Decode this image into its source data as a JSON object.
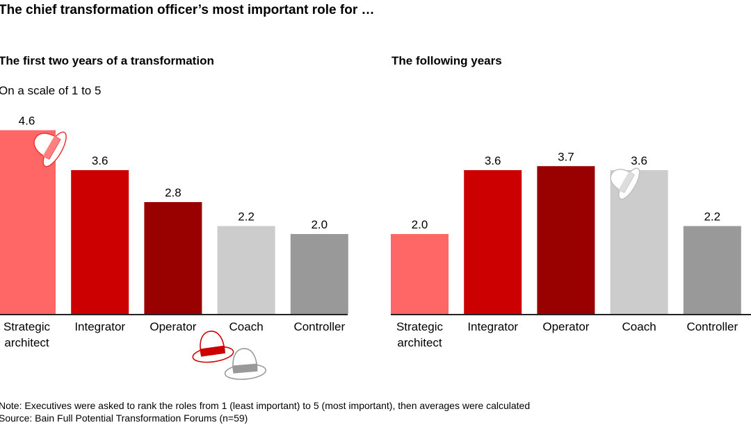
{
  "title": "The chief transformation officer’s most important role for …",
  "scale_note": "On a scale of 1 to 5",
  "footnote": "Note: Executives were asked to rank the roles from 1 (least important) to 5 (most important), then averages were calculated",
  "source": "Source: Bain Full Potential Transformation Forums (n=59)",
  "colors": {
    "Strategic architect": "#ff6666",
    "Integrator": "#cc0000",
    "Operator": "#990000",
    "Coach": "#cccccc",
    "Controller": "#999999"
  },
  "chart_data": [
    {
      "type": "bar",
      "title": "The first two years of a transformation",
      "categories": [
        "Strategic architect",
        "Integrator",
        "Operator",
        "Coach",
        "Controller"
      ],
      "values": [
        4.6,
        3.6,
        2.8,
        2.2,
        2.0
      ],
      "data_labels": [
        "4.6",
        "3.6",
        "2.8",
        "2.2",
        "2.0"
      ],
      "ylim": [
        0,
        5
      ],
      "grid": false
    },
    {
      "type": "bar",
      "title": "The following years",
      "categories": [
        "Strategic architect",
        "Integrator",
        "Operator",
        "Coach",
        "Controller"
      ],
      "values": [
        2.0,
        3.6,
        3.7,
        3.6,
        2.2
      ],
      "data_labels": [
        "2.0",
        "3.6",
        "3.7",
        "3.6",
        "2.2"
      ],
      "ylim": [
        0,
        5
      ],
      "grid": false
    }
  ],
  "icons": [
    "red-hat-icon",
    "stacked-hats-icon",
    "white-hat-icon"
  ]
}
